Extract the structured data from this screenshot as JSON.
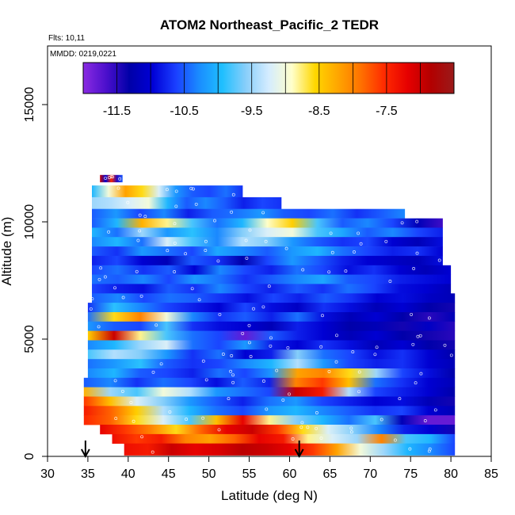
{
  "chart_data": {
    "type": "heatmap",
    "title": "ATOM2 Northeast_Pacific_2 TEDR",
    "subtitle_flights": "Flts: 10,11",
    "subtitle_dates": "MMDD: 0219,0221",
    "xlabel": "Latitude (deg N)",
    "ylabel": "Altitude (m)",
    "xlim": [
      30,
      85
    ],
    "ylim": [
      0,
      17500
    ],
    "x_ticks": [
      "30",
      "35",
      "40",
      "45",
      "50",
      "55",
      "60",
      "65",
      "70",
      "75",
      "80",
      "85"
    ],
    "y_ticks": [
      "0",
      "5000",
      "10000",
      "15000"
    ],
    "colorbar": {
      "range": [
        -12.0,
        -6.5
      ],
      "tick_labels": [
        "-11.5",
        "-10.5",
        "-9.5",
        "-8.5",
        "-7.5"
      ],
      "tick_values": [
        -11.5,
        -10.5,
        -9.5,
        -8.5,
        -7.5
      ],
      "colors": [
        "#8a2be2",
        "#4b0fcc",
        "#0000a8",
        "#0000d6",
        "#1a3fff",
        "#1a8cff",
        "#1fbfff",
        "#87cefa",
        "#d4ecff",
        "#ffffcc",
        "#ffd700",
        "#ffa500",
        "#ff7000",
        "#ff2a00",
        "#e60000",
        "#b30000",
        "#9a1a1a"
      ]
    },
    "markers": [
      {
        "latitude": 34.7,
        "symbol": "down-arrow"
      },
      {
        "latitude": 61.2,
        "symbol": "down-arrow"
      }
    ],
    "layers": [
      {
        "alt": 11850,
        "h": 300,
        "lat0": 36.5,
        "lat1": 39.3,
        "v": [
          -7.0,
          -11.0,
          -7.5,
          -11.5,
          -10.5
        ]
      },
      {
        "alt": 11300,
        "h": 500,
        "lat0": 35.5,
        "lat1": 54.2,
        "v": [
          -10.0,
          -9.0,
          -8.2,
          -8.6,
          -9.2,
          -10.2,
          -10.5,
          -10.6,
          -10.4,
          -10.7
        ]
      },
      {
        "alt": 10800,
        "h": 500,
        "lat0": 35.5,
        "lat1": 59.0,
        "v": [
          -9.5,
          -9.4,
          -9.2,
          -9.0,
          -10.0,
          -10.5,
          -10.3,
          -10.5,
          -10.8,
          -10.6,
          -10.7
        ]
      },
      {
        "alt": 10350,
        "h": 400,
        "lat0": 35.5,
        "lat1": 74.3,
        "v": [
          -10.5,
          -10.2,
          -10.6,
          -10.3,
          -10.8,
          -10.5,
          -10.4,
          -10.2,
          -10.5,
          -10.6,
          -10.4,
          -10.7,
          -10.5,
          -10.3
        ]
      },
      {
        "alt": 9950,
        "h": 400,
        "lat0": 35.5,
        "lat1": 79.0,
        "v": [
          -10.5,
          -10.0,
          -8.3,
          -8.8,
          -9.8,
          -10.4,
          -10.0,
          -8.9,
          -8.5,
          -9.8,
          -10.5,
          -10.3,
          -10.6,
          -11.2,
          -11.6
        ]
      },
      {
        "alt": 9550,
        "h": 400,
        "lat0": 35.5,
        "lat1": 79.0,
        "v": [
          -10.0,
          -10.4,
          -9.5,
          -10.2,
          -9.9,
          -10.3,
          -9.6,
          -9.2,
          -9.0,
          -9.8,
          -10.1,
          -10.5,
          -10.3,
          -10.6,
          -10.8
        ]
      },
      {
        "alt": 9150,
        "h": 400,
        "lat0": 35.5,
        "lat1": 79.0,
        "v": [
          -10.3,
          -10.0,
          -10.4,
          -9.2,
          -9.8,
          -10.3,
          -9.4,
          -9.6,
          -10.2,
          -10.5,
          -10.7,
          -10.6,
          -11.0,
          -11.2,
          -10.9
        ]
      },
      {
        "alt": 8750,
        "h": 400,
        "lat0": 35.5,
        "lat1": 79.0,
        "v": [
          -10.5,
          -10.7,
          -10.2,
          -10.4,
          -10.6,
          -10.1,
          -10.3,
          -10.5,
          -10.2,
          -10.0,
          -10.4,
          -10.6,
          -10.8,
          -10.7,
          -11.0
        ]
      },
      {
        "alt": 8350,
        "h": 400,
        "lat0": 35.5,
        "lat1": 79.0,
        "v": [
          -10.8,
          -10.6,
          -11.0,
          -11.2,
          -10.5,
          -10.7,
          -11.3,
          -10.6,
          -10.2,
          -10.5,
          -10.8,
          -11.0,
          -11.1,
          -11.2,
          -10.9
        ]
      },
      {
        "alt": 7950,
        "h": 400,
        "lat0": 35.5,
        "lat1": 80.0,
        "v": [
          -10.6,
          -10.4,
          -10.7,
          -10.5,
          -11.0,
          -10.3,
          -10.6,
          -10.8,
          -10.4,
          -10.6,
          -10.9,
          -10.7,
          -11.0,
          -11.2,
          -11.0
        ]
      },
      {
        "alt": 7550,
        "h": 400,
        "lat0": 35.5,
        "lat1": 80.0,
        "v": [
          -10.4,
          -10.5,
          -10.3,
          -10.6,
          -10.2,
          -10.4,
          -10.7,
          -10.5,
          -10.3,
          -10.1,
          -10.5,
          -10.6,
          -10.8,
          -10.9,
          -11.0
        ]
      },
      {
        "alt": 7150,
        "h": 400,
        "lat0": 35.5,
        "lat1": 80.0,
        "v": [
          -10.6,
          -10.8,
          -10.9,
          -10.5,
          -10.7,
          -10.3,
          -10.6,
          -10.8,
          -10.5,
          -10.7,
          -10.4,
          -10.6,
          -10.9,
          -11.0,
          -11.2
        ]
      },
      {
        "alt": 6750,
        "h": 400,
        "lat0": 35.5,
        "lat1": 80.5,
        "v": [
          -10.5,
          -10.3,
          -10.6,
          -10.4,
          -10.5,
          -10.7,
          -10.9,
          -10.6,
          -10.8,
          -10.5,
          -10.7,
          -11.0,
          -10.9,
          -11.1,
          -11.2
        ]
      },
      {
        "alt": 6350,
        "h": 400,
        "lat0": 35.0,
        "lat1": 80.5,
        "v": [
          -10.7,
          -9.9,
          -10.3,
          -10.6,
          -10.8,
          -11.0,
          -10.6,
          -10.9,
          -11.1,
          -10.7,
          -10.9,
          -11.2,
          -11.0,
          -11.3,
          -11.4
        ]
      },
      {
        "alt": 5950,
        "h": 400,
        "lat0": 35.0,
        "lat1": 80.5,
        "v": [
          -10.4,
          -8.6,
          -8.0,
          -9.0,
          -10.3,
          -10.7,
          -10.5,
          -10.8,
          -10.4,
          -10.9,
          -11.2,
          -11.0,
          -11.3,
          -11.5,
          -11.2
        ]
      },
      {
        "alt": 5550,
        "h": 400,
        "lat0": 35.0,
        "lat1": 80.5,
        "v": [
          -10.2,
          -10.5,
          -10.6,
          -9.8,
          -10.7,
          -10.9,
          -11.0,
          -11.2,
          -10.8,
          -11.0,
          -11.3,
          -11.2,
          -11.4,
          -11.1,
          -11.5
        ]
      },
      {
        "alt": 5150,
        "h": 400,
        "lat0": 35.0,
        "lat1": 80.5,
        "v": [
          -8.5,
          -7.0,
          -8.8,
          -9.8,
          -10.4,
          -10.6,
          -11.8,
          -10.5,
          -10.8,
          -11.0,
          -11.2,
          -11.0,
          -11.3,
          -11.4,
          -11.5
        ]
      },
      {
        "alt": 4750,
        "h": 400,
        "lat0": 35.0,
        "lat1": 80.5,
        "v": [
          -10.3,
          -10.0,
          -9.5,
          -9.2,
          -10.4,
          -10.6,
          -10.2,
          -10.8,
          -11.0,
          -10.7,
          -10.9,
          -11.2,
          -11.0,
          -11.3,
          -11.4
        ]
      },
      {
        "alt": 4350,
        "h": 400,
        "lat0": 35.0,
        "lat1": 80.5,
        "v": [
          -9.8,
          -9.4,
          -9.6,
          -10.2,
          -10.7,
          -10.4,
          -11.0,
          -10.8,
          -9.6,
          -10.4,
          -10.6,
          -10.9,
          -10.7,
          -11.0,
          -11.3
        ]
      },
      {
        "alt": 3950,
        "h": 400,
        "lat0": 35.0,
        "lat1": 80.5,
        "v": [
          -10.4,
          -10.2,
          -9.9,
          -10.5,
          -10.7,
          -10.6,
          -10.3,
          -10.0,
          -9.4,
          -10.2,
          -10.6,
          -10.8,
          -10.7,
          -11.0,
          -11.2
        ]
      },
      {
        "alt": 3550,
        "h": 400,
        "lat0": 35.0,
        "lat1": 80.5,
        "v": [
          -10.3,
          -10.0,
          -10.5,
          -10.6,
          -10.8,
          -10.4,
          -10.6,
          -10.2,
          -8.2,
          -8.0,
          -8.6,
          -9.5,
          -10.6,
          -10.9,
          -11.3
        ]
      },
      {
        "alt": 3150,
        "h": 400,
        "lat0": 34.5,
        "lat1": 80.5,
        "v": [
          -10.5,
          -10.3,
          -10.7,
          -10.4,
          -10.6,
          -10.9,
          -10.5,
          -10.8,
          -8.0,
          -7.6,
          -8.4,
          -10.4,
          -10.7,
          -11.0,
          -11.2
        ]
      },
      {
        "alt": 2750,
        "h": 400,
        "lat0": 34.5,
        "lat1": 80.5,
        "v": [
          -8.3,
          -9.5,
          -9.8,
          -9.0,
          -9.4,
          -10.2,
          -10.4,
          -10.6,
          -7.0,
          -7.4,
          -9.4,
          -10.6,
          -10.8,
          -11.0,
          -11.3
        ]
      },
      {
        "alt": 2350,
        "h": 400,
        "lat0": 34.5,
        "lat1": 80.5,
        "v": [
          -7.6,
          -8.4,
          -9.2,
          -9.6,
          -10.2,
          -10.5,
          -10.8,
          -10.4,
          -10.2,
          -10.6,
          -10.8,
          -11.0,
          -10.9,
          -11.2,
          -11.4
        ]
      },
      {
        "alt": 1950,
        "h": 400,
        "lat0": 34.5,
        "lat1": 80.5,
        "v": [
          -7.4,
          -7.8,
          -8.5,
          -9.4,
          -10.0,
          -10.4,
          -10.6,
          -10.2,
          -10.0,
          -10.3,
          -10.5,
          -10.7,
          -10.6,
          -11.0,
          -11.2
        ]
      },
      {
        "alt": 1550,
        "h": 400,
        "lat0": 34.5,
        "lat1": 80.5,
        "v": [
          -7.5,
          -7.8,
          -8.6,
          -9.2,
          -9.8,
          -8.4,
          -7.2,
          -8.8,
          -9.6,
          -10.0,
          -10.4,
          -9.8,
          -11.2,
          -11.8,
          -11.8
        ]
      },
      {
        "alt": 1150,
        "h": 400,
        "lat0": 36.5,
        "lat1": 80.5,
        "v": [
          -7.2,
          -7.6,
          -8.0,
          -8.6,
          -7.8,
          -7.2,
          -7.0,
          -7.6,
          -8.6,
          -9.2,
          -9.6,
          -10.3,
          -10.8,
          -11.0,
          -11.4
        ]
      },
      {
        "alt": 750,
        "h": 400,
        "lat0": 38.0,
        "lat1": 80.5,
        "v": [
          -7.3,
          -7.6,
          -7.4,
          -8.0,
          -8.2,
          -7.8,
          -7.2,
          -7.4,
          -8.8,
          -9.2,
          -9.5,
          -8.0,
          -9.8,
          -10.0,
          -10.6
        ]
      },
      {
        "alt": 300,
        "h": 500,
        "lat0": 39.5,
        "lat1": 80.5,
        "v": [
          -7.3,
          -7.4,
          -7.0,
          -7.2,
          -7.1,
          -6.9,
          -7.0,
          -7.2,
          -7.6,
          -8.2,
          -9.0,
          -9.5,
          -10.0,
          -10.3,
          -10.6
        ]
      }
    ]
  }
}
